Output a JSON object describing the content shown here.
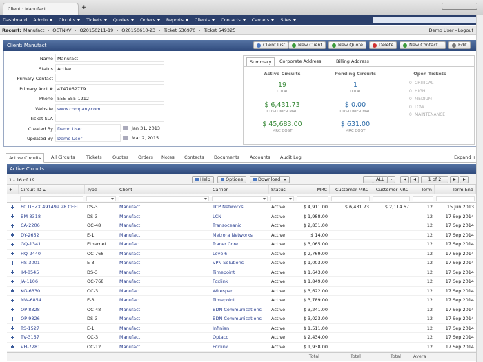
{
  "browser": {
    "tab_title": "Client : Manufact",
    "new_tab": "+"
  },
  "menu": [
    "Dashboard",
    "Admin",
    "Circuits",
    "Tickets",
    "Quotes",
    "Orders",
    "Reports",
    "Clients",
    "Contacts",
    "Carriers",
    "Sites"
  ],
  "recent": {
    "label": "Recent:",
    "items": [
      "Manufact",
      "OCTNKV",
      "Q20150211-19",
      "Q20150610-23",
      "Ticket 536970",
      "Ticket 549325"
    ],
    "user": "Demo User",
    "logout": "Logout"
  },
  "client_panel": {
    "title": "Client: Manufact",
    "buttons": [
      "Client List",
      "New Client",
      "New Quote",
      "Delete",
      "New Contact...",
      "Edit"
    ],
    "fields": [
      {
        "label": "Name",
        "value": "Manufact"
      },
      {
        "label": "Status",
        "value": "Active"
      },
      {
        "label": "Primary Contact"
      },
      {
        "label": "Primary Acct #",
        "value": "4747062779"
      },
      {
        "label": "Phone",
        "value": "555-555-1212"
      },
      {
        "label": "Website",
        "value": "www.company.com"
      },
      {
        "label": "Ticket SLA"
      },
      {
        "label": "Created By",
        "value": "Demo User",
        "date": "Jan 31, 2013"
      },
      {
        "label": "Updated By",
        "value": "Demo User",
        "date": "Mar 2, 2015"
      }
    ]
  },
  "summary_tabs": [
    "Summary",
    "Corporate Address",
    "Billing Address"
  ],
  "summary": {
    "active": {
      "title": "Active Circuits",
      "stats": [
        {
          "value": "19",
          "label": "TOTAL"
        },
        {
          "value": "$ 6,431.73",
          "label": "CUSTOMER MRC"
        },
        {
          "value": "$ 45,683.00",
          "label": "MRC COST"
        }
      ]
    },
    "pending": {
      "title": "Pending Circuits",
      "stats": [
        {
          "value": "1",
          "label": "TOTAL"
        },
        {
          "value": "$ 0.00",
          "label": "CUSTOMER MRC"
        },
        {
          "value": "$ 631.00",
          "label": "MRC COST"
        }
      ]
    },
    "tickets": {
      "title": "Open Tickets",
      "items": [
        {
          "count": "0",
          "label": "CRITICAL"
        },
        {
          "count": "0",
          "label": "HIGH"
        },
        {
          "count": "0",
          "label": "MEDIUM"
        },
        {
          "count": "0",
          "label": "LOW"
        },
        {
          "count": "0",
          "label": "MAINTENANCE"
        }
      ]
    }
  },
  "tabs": [
    "Active Circuits",
    "All Circuits",
    "Tickets",
    "Quotes",
    "Orders",
    "Notes",
    "Contacts",
    "Documents",
    "Accounts",
    "Audit Log"
  ],
  "expand": "Expand +",
  "grid": {
    "title": "Active Circuits",
    "range": "1 - 16 of 19",
    "help": "Help",
    "options": "Options",
    "download": "Download",
    "expand_all": "+",
    "all": "ALL",
    "collapse": "-",
    "page": "1 of 2",
    "columns": [
      "+",
      "Circuit ID",
      "Type",
      "Client",
      "Carrier",
      "Status",
      "MRC",
      "Customer MRC",
      "Customer NRC",
      "Term",
      "Term End"
    ],
    "rows": [
      [
        "60.DHZX.491499.28.CEFL",
        "DS-3",
        "Manufact",
        "TCP Networks",
        "Active",
        "$ 4,911.00",
        "$ 6,431.73",
        "$ 2,114.67",
        "12",
        "15 Jun 2013"
      ],
      [
        "BM-8318",
        "DS-3",
        "Manufact",
        "LCN",
        "Active",
        "$ 1,988.00",
        null,
        null,
        "12",
        "17 Sep 2014"
      ],
      [
        "CA-2206",
        "OC-48",
        "Manufact",
        "Transoceanic",
        "Active",
        "$ 2,831.00",
        null,
        null,
        "12",
        "17 Sep 2014"
      ],
      [
        "DY-2652",
        "E-1",
        "Manufact",
        "Metrora Networks",
        "Active",
        "$ 14.00",
        null,
        null,
        "12",
        "17 Sep 2014"
      ],
      [
        "GQ-1341",
        "Ethernet",
        "Manufact",
        "Tracer Core",
        "Active",
        "$ 3,065.00",
        null,
        null,
        "12",
        "17 Sep 2014"
      ],
      [
        "HQ-2440",
        "OC-768",
        "Manufact",
        "Level6",
        "Active",
        "$ 2,769.00",
        null,
        null,
        "12",
        "17 Sep 2014"
      ],
      [
        "HS-3001",
        "E-3",
        "Manufact",
        "VPN Solutions",
        "Active",
        "$ 1,003.00",
        null,
        null,
        "12",
        "17 Sep 2014"
      ],
      [
        "IM-8545",
        "DS-3",
        "Manufact",
        "Timepoint",
        "Active",
        "$ 1,643.00",
        null,
        null,
        "12",
        "17 Sep 2014"
      ],
      [
        "JA-1106",
        "OC-768",
        "Manufact",
        "Foxlink",
        "Active",
        "$ 1,849.00",
        null,
        null,
        "12",
        "17 Sep 2014"
      ],
      [
        "KG-6330",
        "OC-3",
        "Manufact",
        "Wirespan",
        "Active",
        "$ 3,622.00",
        null,
        null,
        "12",
        "17 Sep 2014"
      ],
      [
        "NW-6854",
        "E-3",
        "Manufact",
        "Timepoint",
        "Active",
        "$ 3,789.00",
        null,
        null,
        "12",
        "17 Sep 2014"
      ],
      [
        "OP-8328",
        "OC-48",
        "Manufact",
        "BDN Communications",
        "Active",
        "$ 3,241.00",
        null,
        null,
        "12",
        "17 Sep 2014"
      ],
      [
        "OP-9826",
        "DS-3",
        "Manufact",
        "BDN Communications",
        "Active",
        "$ 3,023.00",
        null,
        null,
        "12",
        "17 Sep 2014"
      ],
      [
        "TS-1527",
        "E-1",
        "Manufact",
        "Infinian",
        "Active",
        "$ 1,511.00",
        null,
        null,
        "12",
        "17 Sep 2014"
      ],
      [
        "TV-3157",
        "OC-3",
        "Manufact",
        "Optaco",
        "Active",
        "$ 2,434.00",
        null,
        null,
        "12",
        "17 Sep 2014"
      ],
      [
        "VH-7281",
        "OC-12",
        "Manufact",
        "Foxlink",
        "Active",
        "$ 1,938.00",
        null,
        null,
        "12",
        "17 Sep 2014"
      ]
    ],
    "footer": [
      "Total",
      "Total",
      "Total",
      "Average"
    ]
  }
}
